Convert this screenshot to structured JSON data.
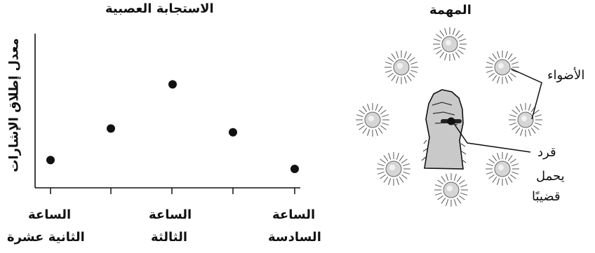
{
  "chart_data": {
    "type": "scatter",
    "title": "الاستجابة العصبية",
    "ylabel": "معدل إطلاق الإشارات",
    "categories": [
      "الساعة الثانية عشرة",
      "",
      "الساعة الثالثة",
      "",
      "الساعة السادسة"
    ],
    "tick_labels": [
      {
        "line1": "الساعة",
        "line2": "الثانية عشرة"
      },
      {
        "line1": "الساعة",
        "line2": "الثالثة"
      },
      {
        "line1": "الساعة",
        "line2": "السادسة"
      }
    ],
    "x": [
      1,
      2,
      3,
      4,
      5
    ],
    "values": [
      1.2,
      3.7,
      7.2,
      3.4,
      0.5
    ],
    "ylim": [
      0,
      10
    ],
    "grid": false
  },
  "task": {
    "title": "المهمة",
    "lights_label": "الأضواء",
    "monkey_label": [
      "قرد",
      "يحمل",
      "قضيبًا"
    ],
    "light_count": 8,
    "light_icon": "light-bulb-icon",
    "hand_icon": "monkey-hand-icon"
  },
  "colors": {
    "ink": "#111111",
    "light_fill": "#d6d6d6",
    "hand_fill": "#c8c8c8"
  }
}
